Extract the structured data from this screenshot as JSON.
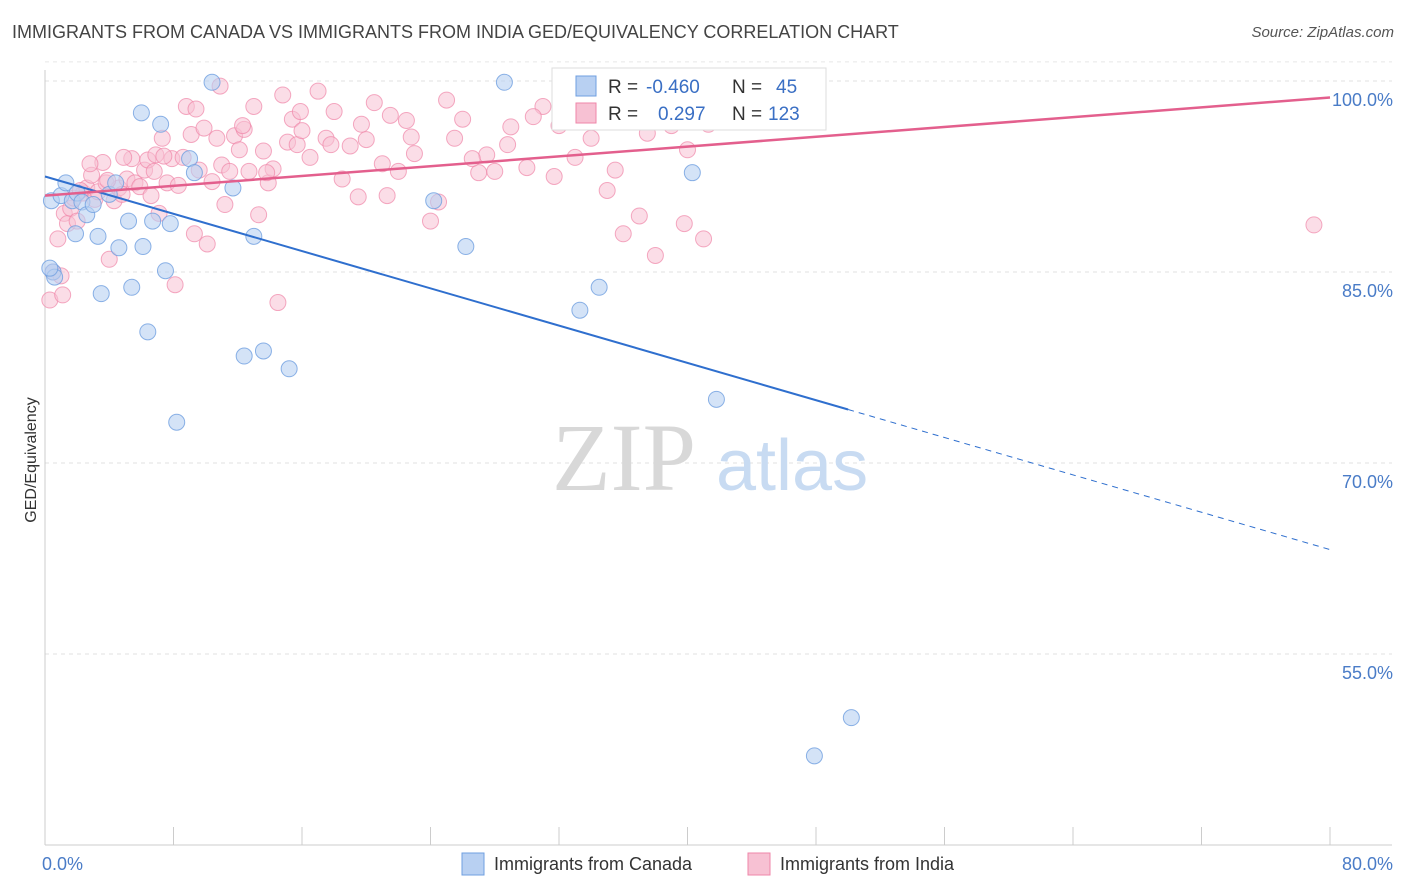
{
  "header": {
    "title": "IMMIGRANTS FROM CANADA VS IMMIGRANTS FROM INDIA GED/EQUIVALENCY CORRELATION CHART",
    "source": "Source: ZipAtlas.com"
  },
  "watermark": {
    "zip": "ZIP",
    "atlas": "atlas"
  },
  "colors": {
    "canada": "#6f9fe0",
    "canada_fill": "#b8d0f2",
    "india": "#ef86a8",
    "india_fill": "#f7c1d3",
    "canada_line": "#2f6fce",
    "india_line": "#e35f8d",
    "tick_text": "#4a7cc7",
    "grid": "#e2e2e2"
  },
  "legend": {
    "rows": [
      {
        "r_label": "R =",
        "r_value": "-0.460",
        "n_label": "N =",
        "n_value": "45"
      },
      {
        "r_label": "R =",
        "r_value": "0.297",
        "n_label": "N =",
        "n_value": "123"
      }
    ]
  },
  "chart_data": {
    "type": "scatter",
    "xlabel": "",
    "ylabel": "GED/Equivalency",
    "xlim": [
      0,
      80
    ],
    "ylim": [
      40,
      102
    ],
    "x_tick_labels": [
      "0.0%",
      "80.0%"
    ],
    "y_ticks": [
      55,
      70,
      85,
      100
    ],
    "y_tick_labels": [
      "55.0%",
      "70.0%",
      "85.0%",
      "100.0%"
    ],
    "grid": true,
    "legend_position": "bottom",
    "series": [
      {
        "name": "Immigrants from Canada",
        "points": [
          [
            0.4,
            90.6
          ],
          [
            0.5,
            85.0
          ],
          [
            1.0,
            91.0
          ],
          [
            1.3,
            92.0
          ],
          [
            1.7,
            90.6
          ],
          [
            2.0,
            91.2
          ],
          [
            2.3,
            90.5
          ],
          [
            2.6,
            89.5
          ],
          [
            1.9,
            88.0
          ],
          [
            3.0,
            90.3
          ],
          [
            3.3,
            87.8
          ],
          [
            3.5,
            83.3
          ],
          [
            4.0,
            91.1
          ],
          [
            4.4,
            92.0
          ],
          [
            4.6,
            86.9
          ],
          [
            5.2,
            89.0
          ],
          [
            5.4,
            83.8
          ],
          [
            6.0,
            97.5
          ],
          [
            6.1,
            87.0
          ],
          [
            6.4,
            80.3
          ],
          [
            6.7,
            89.0
          ],
          [
            7.2,
            96.6
          ],
          [
            7.5,
            85.1
          ],
          [
            7.8,
            88.8
          ],
          [
            8.2,
            73.2
          ],
          [
            9.0,
            93.9
          ],
          [
            9.3,
            92.8
          ],
          [
            10.4,
            99.9
          ],
          [
            11.7,
            91.6
          ],
          [
            12.4,
            78.4
          ],
          [
            13.0,
            87.8
          ],
          [
            13.6,
            78.8
          ],
          [
            15.2,
            77.4
          ],
          [
            24.2,
            90.6
          ],
          [
            26.2,
            87.0
          ],
          [
            28.6,
            99.9
          ],
          [
            32.6,
            100.0
          ],
          [
            33.3,
            82.0
          ],
          [
            34.5,
            83.8
          ],
          [
            40.3,
            92.8
          ],
          [
            41.8,
            75.0
          ],
          [
            50.2,
            50.0
          ],
          [
            47.9,
            47.0
          ],
          [
            0.6,
            84.6
          ],
          [
            0.3,
            85.3
          ]
        ]
      },
      {
        "name": "Immigrants from India",
        "points": [
          [
            0.3,
            82.8
          ],
          [
            0.5,
            85.0
          ],
          [
            0.8,
            87.6
          ],
          [
            1.0,
            84.7
          ],
          [
            1.2,
            89.6
          ],
          [
            1.4,
            88.8
          ],
          [
            1.6,
            90.0
          ],
          [
            1.8,
            90.8
          ],
          [
            2.0,
            89.0
          ],
          [
            2.4,
            91.2
          ],
          [
            2.6,
            91.6
          ],
          [
            2.9,
            92.6
          ],
          [
            3.1,
            90.7
          ],
          [
            3.3,
            91.3
          ],
          [
            3.6,
            93.6
          ],
          [
            3.8,
            92.0
          ],
          [
            4.0,
            86.0
          ],
          [
            4.3,
            90.6
          ],
          [
            4.6,
            91.6
          ],
          [
            4.8,
            91.1
          ],
          [
            5.1,
            92.3
          ],
          [
            5.4,
            93.9
          ],
          [
            5.6,
            92.0
          ],
          [
            5.9,
            91.7
          ],
          [
            6.2,
            93.0
          ],
          [
            6.4,
            93.8
          ],
          [
            6.6,
            91.0
          ],
          [
            6.9,
            94.2
          ],
          [
            7.1,
            89.6
          ],
          [
            7.3,
            95.5
          ],
          [
            7.6,
            92.0
          ],
          [
            7.9,
            93.9
          ],
          [
            8.1,
            84.0
          ],
          [
            8.3,
            91.8
          ],
          [
            8.6,
            94.0
          ],
          [
            8.8,
            98.0
          ],
          [
            9.1,
            95.8
          ],
          [
            9.3,
            88.0
          ],
          [
            9.6,
            93.0
          ],
          [
            9.9,
            96.3
          ],
          [
            10.1,
            87.2
          ],
          [
            10.4,
            92.1
          ],
          [
            10.7,
            95.5
          ],
          [
            11.0,
            93.4
          ],
          [
            11.2,
            90.3
          ],
          [
            11.5,
            92.9
          ],
          [
            11.8,
            95.7
          ],
          [
            12.1,
            94.6
          ],
          [
            12.4,
            96.2
          ],
          [
            12.7,
            92.9
          ],
          [
            13.0,
            98.0
          ],
          [
            13.3,
            89.5
          ],
          [
            13.6,
            94.5
          ],
          [
            13.9,
            92.0
          ],
          [
            14.2,
            93.1
          ],
          [
            14.5,
            82.6
          ],
          [
            14.8,
            98.9
          ],
          [
            15.1,
            95.2
          ],
          [
            15.4,
            97.0
          ],
          [
            15.7,
            95.0
          ],
          [
            16.0,
            96.1
          ],
          [
            16.5,
            94.0
          ],
          [
            17.0,
            99.2
          ],
          [
            17.5,
            95.5
          ],
          [
            18.0,
            97.6
          ],
          [
            18.5,
            92.3
          ],
          [
            19.0,
            94.9
          ],
          [
            19.5,
            90.9
          ],
          [
            20.0,
            95.4
          ],
          [
            20.5,
            98.3
          ],
          [
            21.0,
            93.5
          ],
          [
            21.5,
            97.3
          ],
          [
            22.0,
            92.9
          ],
          [
            22.5,
            96.9
          ],
          [
            23.0,
            94.3
          ],
          [
            24.0,
            89.0
          ],
          [
            25.0,
            98.5
          ],
          [
            25.5,
            95.5
          ],
          [
            26.0,
            97.0
          ],
          [
            27.0,
            92.8
          ],
          [
            27.5,
            94.2
          ],
          [
            28.0,
            92.9
          ],
          [
            29.0,
            96.4
          ],
          [
            30.0,
            93.2
          ],
          [
            31.0,
            98.0
          ],
          [
            32.0,
            96.5
          ],
          [
            33.0,
            94.0
          ],
          [
            34.0,
            95.5
          ],
          [
            35.0,
            91.4
          ],
          [
            36.0,
            88.0
          ],
          [
            37.0,
            89.4
          ],
          [
            38.0,
            86.3
          ],
          [
            39.0,
            96.5
          ],
          [
            40.0,
            94.6
          ],
          [
            41.0,
            87.6
          ],
          [
            42.0,
            98.5
          ],
          [
            2.2,
            91.4
          ],
          [
            3.9,
            92.2
          ],
          [
            4.9,
            94.0
          ],
          [
            6.8,
            92.9
          ],
          [
            7.4,
            94.1
          ],
          [
            9.4,
            97.8
          ],
          [
            10.9,
            99.6
          ],
          [
            12.3,
            96.5
          ],
          [
            13.8,
            92.8
          ],
          [
            15.9,
            97.6
          ],
          [
            17.8,
            95.0
          ],
          [
            19.7,
            96.6
          ],
          [
            21.3,
            91.0
          ],
          [
            22.8,
            95.6
          ],
          [
            24.5,
            90.5
          ],
          [
            26.6,
            93.9
          ],
          [
            28.8,
            95.0
          ],
          [
            30.4,
            97.2
          ],
          [
            31.7,
            92.5
          ],
          [
            33.9,
            99.3
          ],
          [
            35.5,
            93.0
          ],
          [
            37.5,
            95.9
          ],
          [
            39.8,
            88.8
          ],
          [
            41.3,
            96.6
          ],
          [
            79.0,
            88.7
          ],
          [
            1.1,
            83.2
          ],
          [
            2.8,
            93.5
          ]
        ]
      }
    ],
    "trend_lines": [
      {
        "series": "Immigrants from Canada",
        "x0": 0,
        "y0": 92.5,
        "x1": 50,
        "y1": 74.2,
        "dashed_to_x": 80,
        "dashed_to_y": 63.2
      },
      {
        "series": "Immigrants from India",
        "x0": 0,
        "y0": 91.0,
        "x1": 80,
        "y1": 98.7
      }
    ]
  }
}
